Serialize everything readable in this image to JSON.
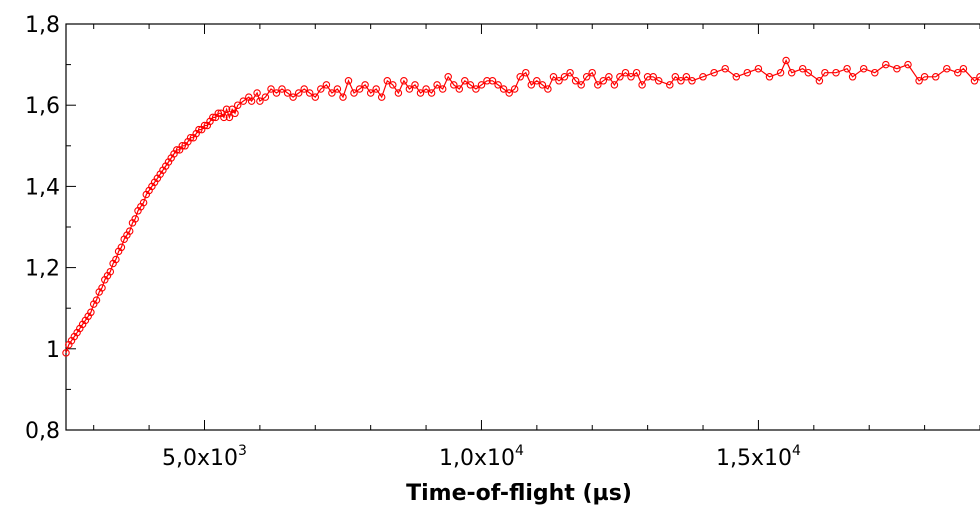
{
  "chart_data": {
    "type": "scatter",
    "title": "",
    "xlabel": "Time-of-flight (µs)",
    "ylabel": "",
    "xlim": [
      2500,
      19000
    ],
    "ylim": [
      0.8,
      1.8
    ],
    "grid": false,
    "x_ticks": [
      {
        "value": 5000,
        "mantissa": "5,0x10",
        "exp": "3"
      },
      {
        "value": 10000,
        "mantissa": "1,0x10",
        "exp": "4"
      },
      {
        "value": 15000,
        "mantissa": "1,5x10",
        "exp": "4"
      }
    ],
    "y_ticks": [
      {
        "value": 0.8,
        "label": "0,8"
      },
      {
        "value": 1.0,
        "label": "1"
      },
      {
        "value": 1.2,
        "label": "1,2"
      },
      {
        "value": 1.4,
        "label": "1,4"
      },
      {
        "value": 1.6,
        "label": "1,6"
      },
      {
        "value": 1.8,
        "label": "1,8"
      }
    ],
    "series": [
      {
        "color": "#ff0000",
        "marker": "open-circle",
        "line": "solid",
        "points": [
          [
            2500,
            0.99
          ],
          [
            2550,
            1.01
          ],
          [
            2600,
            1.02
          ],
          [
            2650,
            1.03
          ],
          [
            2700,
            1.04
          ],
          [
            2750,
            1.05
          ],
          [
            2800,
            1.06
          ],
          [
            2850,
            1.07
          ],
          [
            2900,
            1.08
          ],
          [
            2950,
            1.09
          ],
          [
            3000,
            1.11
          ],
          [
            3050,
            1.12
          ],
          [
            3100,
            1.14
          ],
          [
            3150,
            1.15
          ],
          [
            3200,
            1.17
          ],
          [
            3250,
            1.18
          ],
          [
            3300,
            1.19
          ],
          [
            3350,
            1.21
          ],
          [
            3400,
            1.22
          ],
          [
            3450,
            1.24
          ],
          [
            3500,
            1.25
          ],
          [
            3550,
            1.27
          ],
          [
            3600,
            1.28
          ],
          [
            3650,
            1.29
          ],
          [
            3700,
            1.31
          ],
          [
            3750,
            1.32
          ],
          [
            3800,
            1.34
          ],
          [
            3850,
            1.35
          ],
          [
            3900,
            1.36
          ],
          [
            3950,
            1.38
          ],
          [
            4000,
            1.39
          ],
          [
            4050,
            1.4
          ],
          [
            4100,
            1.41
          ],
          [
            4150,
            1.42
          ],
          [
            4200,
            1.43
          ],
          [
            4250,
            1.44
          ],
          [
            4300,
            1.45
          ],
          [
            4350,
            1.46
          ],
          [
            4400,
            1.47
          ],
          [
            4450,
            1.48
          ],
          [
            4500,
            1.49
          ],
          [
            4550,
            1.49
          ],
          [
            4600,
            1.5
          ],
          [
            4650,
            1.5
          ],
          [
            4700,
            1.51
          ],
          [
            4750,
            1.52
          ],
          [
            4800,
            1.52
          ],
          [
            4850,
            1.53
          ],
          [
            4900,
            1.54
          ],
          [
            4950,
            1.54
          ],
          [
            5000,
            1.55
          ],
          [
            5050,
            1.55
          ],
          [
            5100,
            1.56
          ],
          [
            5150,
            1.57
          ],
          [
            5200,
            1.57
          ],
          [
            5250,
            1.58
          ],
          [
            5300,
            1.58
          ],
          [
            5350,
            1.57
          ],
          [
            5400,
            1.59
          ],
          [
            5450,
            1.57
          ],
          [
            5500,
            1.59
          ],
          [
            5550,
            1.58
          ],
          [
            5600,
            1.6
          ],
          [
            5700,
            1.61
          ],
          [
            5800,
            1.62
          ],
          [
            5850,
            1.61
          ],
          [
            5950,
            1.63
          ],
          [
            6000,
            1.61
          ],
          [
            6100,
            1.62
          ],
          [
            6200,
            1.64
          ],
          [
            6300,
            1.63
          ],
          [
            6400,
            1.64
          ],
          [
            6500,
            1.63
          ],
          [
            6600,
            1.62
          ],
          [
            6700,
            1.63
          ],
          [
            6800,
            1.64
          ],
          [
            6900,
            1.63
          ],
          [
            7000,
            1.62
          ],
          [
            7100,
            1.64
          ],
          [
            7200,
            1.65
          ],
          [
            7300,
            1.63
          ],
          [
            7400,
            1.64
          ],
          [
            7500,
            1.62
          ],
          [
            7600,
            1.66
          ],
          [
            7700,
            1.63
          ],
          [
            7800,
            1.64
          ],
          [
            7900,
            1.65
          ],
          [
            8000,
            1.63
          ],
          [
            8100,
            1.64
          ],
          [
            8200,
            1.62
          ],
          [
            8300,
            1.66
          ],
          [
            8400,
            1.65
          ],
          [
            8500,
            1.63
          ],
          [
            8600,
            1.66
          ],
          [
            8700,
            1.64
          ],
          [
            8800,
            1.65
          ],
          [
            8900,
            1.63
          ],
          [
            9000,
            1.64
          ],
          [
            9100,
            1.63
          ],
          [
            9200,
            1.65
          ],
          [
            9300,
            1.64
          ],
          [
            9400,
            1.67
          ],
          [
            9500,
            1.65
          ],
          [
            9600,
            1.64
          ],
          [
            9700,
            1.66
          ],
          [
            9800,
            1.65
          ],
          [
            9900,
            1.64
          ],
          [
            10000,
            1.65
          ],
          [
            10100,
            1.66
          ],
          [
            10200,
            1.66
          ],
          [
            10300,
            1.65
          ],
          [
            10400,
            1.64
          ],
          [
            10500,
            1.63
          ],
          [
            10600,
            1.64
          ],
          [
            10700,
            1.67
          ],
          [
            10800,
            1.68
          ],
          [
            10900,
            1.65
          ],
          [
            11000,
            1.66
          ],
          [
            11100,
            1.65
          ],
          [
            11200,
            1.64
          ],
          [
            11300,
            1.67
          ],
          [
            11400,
            1.66
          ],
          [
            11500,
            1.67
          ],
          [
            11600,
            1.68
          ],
          [
            11700,
            1.66
          ],
          [
            11800,
            1.65
          ],
          [
            11900,
            1.67
          ],
          [
            12000,
            1.68
          ],
          [
            12100,
            1.65
          ],
          [
            12200,
            1.66
          ],
          [
            12300,
            1.67
          ],
          [
            12400,
            1.65
          ],
          [
            12500,
            1.67
          ],
          [
            12600,
            1.68
          ],
          [
            12700,
            1.67
          ],
          [
            12800,
            1.68
          ],
          [
            12900,
            1.65
          ],
          [
            13000,
            1.67
          ],
          [
            13100,
            1.67
          ],
          [
            13200,
            1.66
          ],
          [
            13400,
            1.65
          ],
          [
            13500,
            1.67
          ],
          [
            13600,
            1.66
          ],
          [
            13700,
            1.67
          ],
          [
            13800,
            1.66
          ],
          [
            14000,
            1.67
          ],
          [
            14200,
            1.68
          ],
          [
            14400,
            1.69
          ],
          [
            14600,
            1.67
          ],
          [
            14800,
            1.68
          ],
          [
            15000,
            1.69
          ],
          [
            15200,
            1.67
          ],
          [
            15400,
            1.68
          ],
          [
            15500,
            1.71
          ],
          [
            15600,
            1.68
          ],
          [
            15800,
            1.69
          ],
          [
            15900,
            1.68
          ],
          [
            16100,
            1.66
          ],
          [
            16200,
            1.68
          ],
          [
            16400,
            1.68
          ],
          [
            16600,
            1.69
          ],
          [
            16700,
            1.67
          ],
          [
            16900,
            1.69
          ],
          [
            17100,
            1.68
          ],
          [
            17300,
            1.7
          ],
          [
            17500,
            1.69
          ],
          [
            17700,
            1.7
          ],
          [
            17900,
            1.66
          ],
          [
            18000,
            1.67
          ],
          [
            18200,
            1.67
          ],
          [
            18400,
            1.69
          ],
          [
            18600,
            1.68
          ],
          [
            18700,
            1.69
          ],
          [
            18900,
            1.66
          ],
          [
            19000,
            1.67
          ]
        ]
      }
    ]
  }
}
